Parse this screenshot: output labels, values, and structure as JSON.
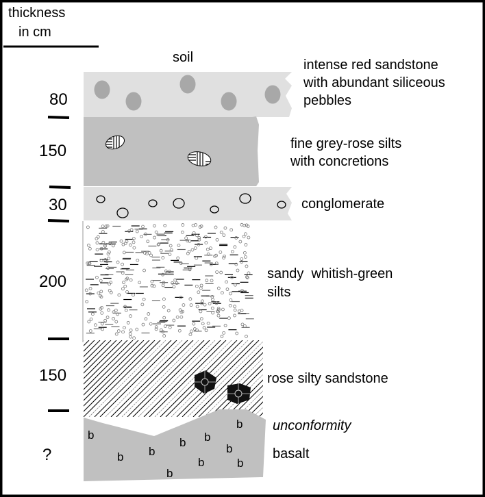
{
  "header": {
    "line1": "thickness",
    "line2": "in cm"
  },
  "top_label": "soil",
  "layers": [
    {
      "thickness": "80",
      "desc": [
        "intense red sandstone",
        "with abundant siliceous",
        "pebbles"
      ],
      "fill": "#e0e0e0",
      "pattern": "pebbles"
    },
    {
      "thickness": "150",
      "desc": [
        "fine grey-rose silts",
        "with concretions"
      ],
      "fill": "#c0c0c0",
      "pattern": "concretions"
    },
    {
      "thickness": "30",
      "desc": [
        "conglomerate"
      ],
      "fill": "#e0e0e0",
      "pattern": "circles"
    },
    {
      "thickness": "200",
      "desc": [
        "sandy  whitish-green",
        "silts"
      ],
      "fill": "#ffffff",
      "pattern": "dashes-and-dots"
    },
    {
      "thickness": "150",
      "desc": [
        "rose silty sandstone"
      ],
      "fill": "#ffffff",
      "pattern": "diagonal-hatch"
    },
    {
      "thickness": "?",
      "desc": [
        "basalt"
      ],
      "fill": "#c0c0c0",
      "pattern": "b-letters",
      "symbol": "b"
    }
  ],
  "contact_label": "unconformity",
  "colors": {
    "pebble": "#a8a8a8",
    "border": "#000000"
  }
}
